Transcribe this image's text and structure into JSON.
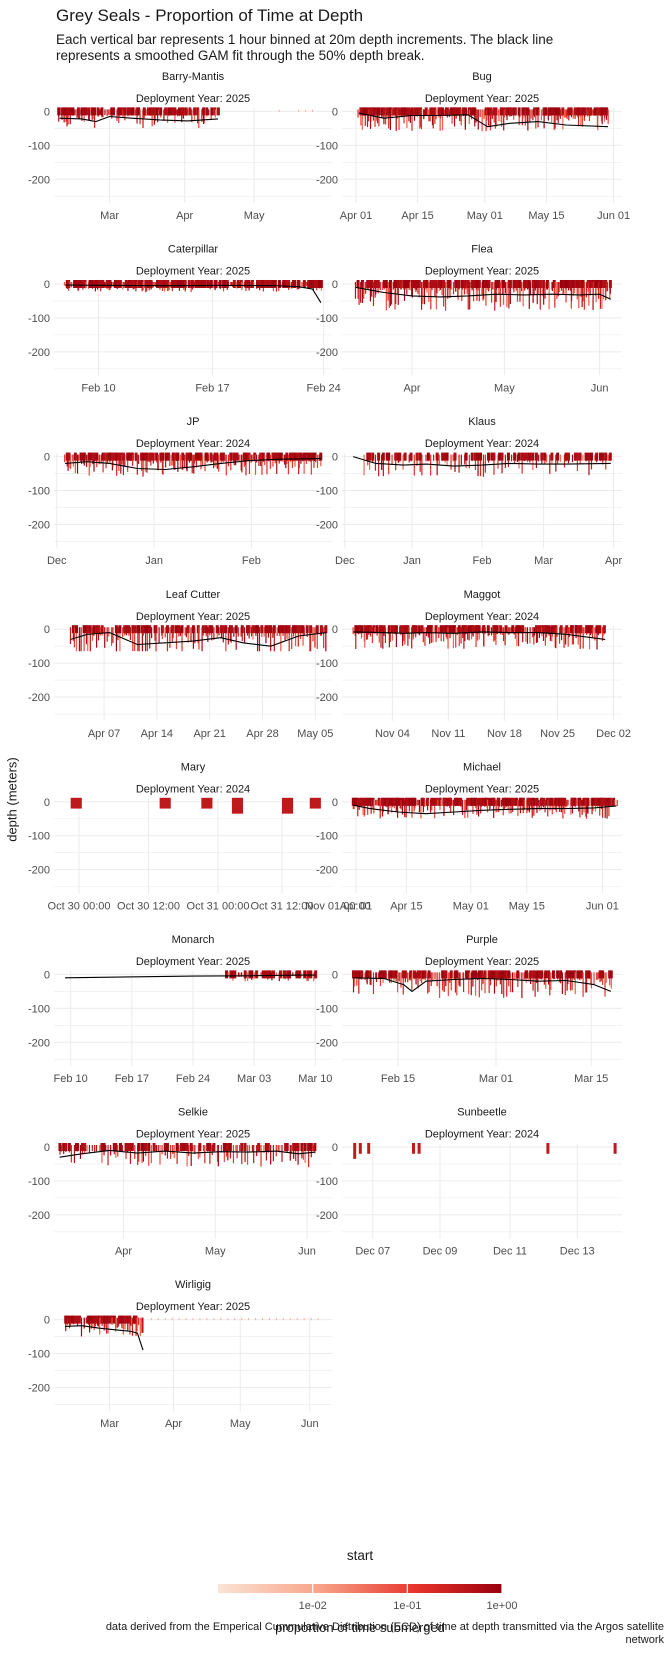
{
  "title": "Grey Seals - Proportion of Time at Depth",
  "subtitle": "Each vertical bar represents 1 hour binned at 20m depth increments. The black line represents a smoothed GAM fit through the 50% depth break.",
  "caption": "data derived from the Emperical Cummulative Distribution (ECD) of time at depth transmitted via the Argos satellite network",
  "colors": {
    "low": "#fbe3d6",
    "mid": "#ef3b2c",
    "high": "#99000d",
    "line": "#000000",
    "grid": "#ebebeb"
  },
  "chart_data": {
    "type": "bar",
    "xlabel": "start",
    "ylabel": "depth (meters)",
    "y_ticks": [
      "0",
      "-100",
      "-200"
    ],
    "ylim": [
      -270,
      10
    ],
    "legend": {
      "title": "proportion of time submerged",
      "position": "bottom",
      "ticks": [
        "1e-02",
        "1e-01",
        "1e+00"
      ],
      "scale": "log10",
      "range": [
        0.001,
        1
      ]
    },
    "panels": [
      {
        "name": "Barry-Mantis",
        "year_label": "Deployment Year: 2025",
        "x_ticks": [
          "Mar",
          "Apr",
          "May"
        ],
        "xlim": [
          0,
          100
        ],
        "tick_pos": [
          20,
          47,
          72
        ],
        "bar_range": [
          2,
          59
        ],
        "bar_density": 85,
        "mean_depth": 25,
        "max_depth": 60,
        "gam": [
          [
            2,
            -20
          ],
          [
            10,
            -22
          ],
          [
            15,
            -30
          ],
          [
            20,
            -15
          ],
          [
            28,
            -20
          ],
          [
            38,
            -25
          ],
          [
            48,
            -28
          ],
          [
            59,
            -22
          ]
        ],
        "sparse": [
          [
            81,
            83
          ],
          [
            88,
            95
          ]
        ]
      },
      {
        "name": "Bug",
        "year_label": "Deployment Year: 2025",
        "x_ticks": [
          "Apr 01",
          "Apr 15",
          "May 01",
          "May 15",
          "Jun 01"
        ],
        "xlim": [
          0,
          100
        ],
        "tick_pos": [
          5,
          27,
          51,
          73,
          97
        ],
        "bar_range": [
          6,
          95
        ],
        "bar_density": 180,
        "mean_depth": 30,
        "max_depth": 60,
        "gam": [
          [
            6,
            -5
          ],
          [
            15,
            -20
          ],
          [
            25,
            -12
          ],
          [
            35,
            -12
          ],
          [
            45,
            -10
          ],
          [
            52,
            -45
          ],
          [
            60,
            -35
          ],
          [
            70,
            -30
          ],
          [
            80,
            -40
          ],
          [
            95,
            -45
          ]
        ]
      },
      {
        "name": "Caterpillar",
        "year_label": "Deployment Year: 2025",
        "x_ticks": [
          "Feb 10",
          "Feb 17",
          "Feb 24"
        ],
        "xlim": [
          0,
          100
        ],
        "tick_pos": [
          16,
          57,
          97
        ],
        "bar_range": [
          4,
          96
        ],
        "bar_density": 170,
        "mean_depth": 12,
        "max_depth": 75,
        "gam": [
          [
            4,
            -3
          ],
          [
            20,
            -4
          ],
          [
            40,
            -5
          ],
          [
            60,
            -4
          ],
          [
            80,
            -5
          ],
          [
            88,
            -8
          ],
          [
            93,
            -15
          ],
          [
            96,
            -55
          ]
        ]
      },
      {
        "name": "Flea",
        "year_label": "Deployment Year: 2025",
        "x_ticks": [
          "Apr",
          "May",
          "Jun"
        ],
        "xlim": [
          0,
          100
        ],
        "tick_pos": [
          25,
          58,
          92
        ],
        "bar_range": [
          5,
          96
        ],
        "bar_density": 180,
        "mean_depth": 40,
        "max_depth": 80,
        "gam": [
          [
            5,
            -10
          ],
          [
            15,
            -25
          ],
          [
            25,
            -35
          ],
          [
            35,
            -38
          ],
          [
            45,
            -35
          ],
          [
            55,
            -30
          ],
          [
            65,
            -32
          ],
          [
            75,
            -30
          ],
          [
            85,
            -32
          ],
          [
            92,
            -30
          ],
          [
            96,
            -45
          ]
        ]
      },
      {
        "name": "JP",
        "year_label": "Deployment Year: 2024",
        "x_ticks": [
          "Dec",
          "Jan",
          "Feb"
        ],
        "xlim": [
          0,
          100
        ],
        "tick_pos": [
          1,
          36,
          71
        ],
        "bar_range": [
          4,
          96
        ],
        "bar_density": 170,
        "mean_depth": 30,
        "max_depth": 95,
        "gam": [
          [
            4,
            -20
          ],
          [
            12,
            -15
          ],
          [
            20,
            -20
          ],
          [
            30,
            -35
          ],
          [
            40,
            -38
          ],
          [
            50,
            -30
          ],
          [
            60,
            -20
          ],
          [
            70,
            -12
          ],
          [
            80,
            -8
          ],
          [
            96,
            -6
          ]
        ]
      },
      {
        "name": "Klaus",
        "year_label": "Deployment Year: 2024",
        "x_ticks": [
          "Dec",
          "Jan",
          "Feb",
          "Mar",
          "Apr"
        ],
        "xlim": [
          0,
          100
        ],
        "tick_pos": [
          1,
          25,
          50,
          72,
          97
        ],
        "bar_range": [
          8,
          96
        ],
        "bar_density": 90,
        "mean_depth": 30,
        "max_depth": 70,
        "gam": [
          [
            4,
            0
          ],
          [
            12,
            -20
          ],
          [
            22,
            -25
          ],
          [
            30,
            -22
          ],
          [
            40,
            -28
          ],
          [
            50,
            -25
          ],
          [
            60,
            -20
          ],
          [
            70,
            -22
          ],
          [
            80,
            -22
          ],
          [
            96,
            -20
          ]
        ]
      },
      {
        "name": "Leaf Cutter",
        "year_label": "Deployment Year: 2025",
        "x_ticks": [
          "Apr 07",
          "Apr 14",
          "Apr 21",
          "Apr 28",
          "May 05"
        ],
        "xlim": [
          0,
          100
        ],
        "tick_pos": [
          18,
          37,
          56,
          75,
          94
        ],
        "bar_range": [
          6,
          98
        ],
        "bar_density": 120,
        "mean_depth": 45,
        "max_depth": 65,
        "gam": [
          [
            6,
            -30
          ],
          [
            12,
            -15
          ],
          [
            20,
            -10
          ],
          [
            30,
            -45
          ],
          [
            40,
            -40
          ],
          [
            50,
            -35
          ],
          [
            60,
            -25
          ],
          [
            68,
            -40
          ],
          [
            78,
            -50
          ],
          [
            88,
            -20
          ],
          [
            98,
            -10
          ]
        ]
      },
      {
        "name": "Maggot",
        "year_label": "Deployment Year: 2024",
        "x_ticks": [
          "Nov 04",
          "Nov 11",
          "Nov 18",
          "Nov 25",
          "Dec 02"
        ],
        "xlim": [
          0,
          100
        ],
        "tick_pos": [
          18,
          38,
          58,
          77,
          97
        ],
        "bar_range": [
          4,
          94
        ],
        "bar_density": 170,
        "mean_depth": 30,
        "max_depth": 100,
        "gam": [
          [
            4,
            -8
          ],
          [
            14,
            -10
          ],
          [
            22,
            -12
          ],
          [
            30,
            -10
          ],
          [
            40,
            -12
          ],
          [
            50,
            -8
          ],
          [
            60,
            -10
          ],
          [
            70,
            -10
          ],
          [
            80,
            -15
          ],
          [
            94,
            -30
          ]
        ]
      },
      {
        "name": "Mary",
        "year_label": "Deployment Year: 2024",
        "x_ticks": [
          "Oct 30 00:00",
          "Oct 30 12:00",
          "Oct 31 00:00",
          "Oct 31 12:00",
          "Nov 01 00:00"
        ],
        "xlim": [
          0,
          100
        ],
        "tick_pos": [
          9,
          34,
          59,
          82,
          106
        ],
        "blocks": [
          [
            6,
            10,
            20
          ],
          [
            38,
            42,
            20
          ],
          [
            53,
            57,
            20
          ],
          [
            64,
            68,
            35
          ],
          [
            82,
            86,
            35
          ],
          [
            92,
            96,
            20
          ]
        ]
      },
      {
        "name": "Michael",
        "year_label": "Deployment Year: 2025",
        "x_ticks": [
          "Apr 01",
          "Apr 15",
          "May 01",
          "May 15",
          "Jun 01"
        ],
        "xlim": [
          0,
          100
        ],
        "tick_pos": [
          5,
          23,
          46,
          66,
          93
        ],
        "bar_range": [
          4,
          98
        ],
        "bar_density": 200,
        "mean_depth": 25,
        "max_depth": 50,
        "gam": [
          [
            4,
            -10
          ],
          [
            10,
            -20
          ],
          [
            20,
            -30
          ],
          [
            30,
            -35
          ],
          [
            40,
            -30
          ],
          [
            50,
            -25
          ],
          [
            60,
            -22
          ],
          [
            70,
            -20
          ],
          [
            80,
            -20
          ],
          [
            90,
            -18
          ],
          [
            98,
            -12
          ]
        ]
      },
      {
        "name": "Monarch",
        "year_label": "Deployment Year: 2025",
        "x_ticks": [
          "Feb 10",
          "Feb 17",
          "Feb 24",
          "Mar 03",
          "Mar 10"
        ],
        "xlim": [
          0,
          100
        ],
        "tick_pos": [
          6,
          28,
          50,
          72,
          94
        ],
        "bar_range": [
          62,
          94
        ],
        "bar_density": 40,
        "mean_depth": 12,
        "max_depth": 20,
        "gam": [
          [
            4,
            -10
          ],
          [
            30,
            -7
          ],
          [
            50,
            -5
          ],
          [
            70,
            -4
          ],
          [
            90,
            -2
          ],
          [
            94,
            -2
          ]
        ]
      },
      {
        "name": "Purple",
        "year_label": "Deployment Year: 2025",
        "x_ticks": [
          "Feb 15",
          "Mar 01",
          "Mar 15"
        ],
        "xlim": [
          0,
          100
        ],
        "tick_pos": [
          20,
          55,
          89
        ],
        "bar_range": [
          4,
          96
        ],
        "bar_density": 140,
        "mean_depth": 35,
        "max_depth": 100,
        "gam": [
          [
            4,
            -10
          ],
          [
            15,
            -12
          ],
          [
            22,
            -30
          ],
          [
            25,
            -50
          ],
          [
            30,
            -20
          ],
          [
            40,
            -15
          ],
          [
            50,
            -12
          ],
          [
            60,
            -15
          ],
          [
            70,
            -20
          ],
          [
            80,
            -18
          ],
          [
            90,
            -30
          ],
          [
            96,
            -50
          ]
        ]
      },
      {
        "name": "Selkie",
        "year_label": "Deployment Year: 2025",
        "x_ticks": [
          "Apr",
          "May",
          "Jun"
        ],
        "xlim": [
          0,
          100
        ],
        "tick_pos": [
          25,
          58,
          91
        ],
        "bar_range": [
          2,
          94
        ],
        "bar_density": 110,
        "mean_depth": 30,
        "max_depth": 80,
        "gam": [
          [
            2,
            -30
          ],
          [
            10,
            -20
          ],
          [
            20,
            -10
          ],
          [
            30,
            -18
          ],
          [
            40,
            -12
          ],
          [
            50,
            -18
          ],
          [
            60,
            -14
          ],
          [
            70,
            -15
          ],
          [
            80,
            -12
          ],
          [
            88,
            -20
          ],
          [
            94,
            -15
          ]
        ]
      },
      {
        "name": "Sunbeetle",
        "year_label": "Deployment Year: 2024",
        "x_ticks": [
          "Dec 07",
          "Dec 09",
          "Dec 11",
          "Dec 13"
        ],
        "xlim": [
          0,
          100
        ],
        "tick_pos": [
          11,
          35,
          60,
          84
        ],
        "blocks": [
          [
            4,
            5,
            35
          ],
          [
            6,
            7,
            20
          ],
          [
            9,
            10,
            20
          ],
          [
            25,
            26,
            20
          ],
          [
            27,
            28,
            20
          ],
          [
            73,
            74,
            20
          ],
          [
            97,
            98,
            20
          ]
        ]
      },
      {
        "name": "Wirligig",
        "year_label": "Deployment Year: 2025",
        "x_ticks": [
          "Mar",
          "Apr",
          "May",
          "Jun"
        ],
        "xlim": [
          0,
          100
        ],
        "tick_pos": [
          20,
          43,
          67,
          92
        ],
        "bar_range": [
          4,
          32
        ],
        "bar_density": 60,
        "mean_depth": 25,
        "max_depth": 55,
        "gam": [
          [
            4,
            -20
          ],
          [
            10,
            -18
          ],
          [
            16,
            -25
          ],
          [
            22,
            -30
          ],
          [
            28,
            -35
          ],
          [
            30,
            -40
          ],
          [
            32,
            -90
          ]
        ],
        "sparse": [
          [
            35,
            95
          ]
        ]
      }
    ]
  }
}
